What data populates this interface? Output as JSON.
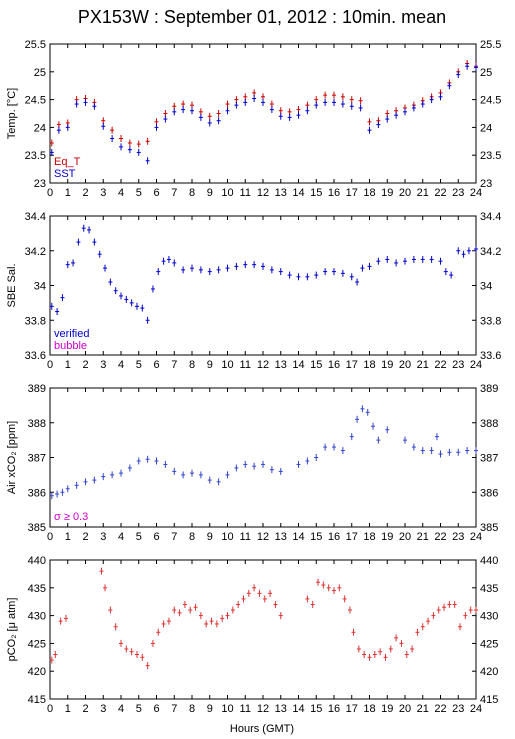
{
  "title": "PX153W : September 01, 2012 : 10min. mean",
  "xlabel": "Hours (GMT)",
  "colors": {
    "eq_t": "#cc0000",
    "sst": "#0000cc",
    "verified": "#0000cc",
    "bubble": "#cc00cc",
    "sigma": "#cc00cc",
    "air": "#3344cc",
    "pco2": "#dd3333"
  },
  "chart_data": [
    {
      "type": "scatter",
      "ylabel": "Temp. [°C]",
      "xlim": [
        0,
        24
      ],
      "ylim": [
        23,
        25.5
      ],
      "xticks": [
        0,
        1,
        2,
        3,
        4,
        5,
        6,
        7,
        8,
        9,
        10,
        11,
        12,
        13,
        14,
        15,
        16,
        17,
        18,
        19,
        20,
        21,
        22,
        23,
        24
      ],
      "yticks": [
        23,
        23.5,
        24,
        24.5,
        25,
        25.5
      ],
      "ytick_labels": [
        "23",
        "23.5",
        "24",
        "24.5",
        "25",
        "25.5"
      ],
      "legend": [
        "Eq_T",
        "SST"
      ],
      "series": [
        {
          "name": "Eq_T",
          "x": [
            0.1,
            0.5,
            1.0,
            1.5,
            2.0,
            2.5,
            3.0,
            3.5,
            4.0,
            4.5,
            5.0,
            5.5,
            6.0,
            6.5,
            7.0,
            7.5,
            8.0,
            8.5,
            9.0,
            9.5,
            10.0,
            10.5,
            11.0,
            11.5,
            12.0,
            12.5,
            13.0,
            13.5,
            14.0,
            14.5,
            15.0,
            15.5,
            16.0,
            16.5,
            17.0,
            17.5,
            18.0,
            18.5,
            19.0,
            19.5,
            20.0,
            20.5,
            21.0,
            21.5,
            22.0,
            22.5,
            23.0,
            23.5,
            24.0
          ],
          "y": [
            23.72,
            24.05,
            24.08,
            24.5,
            24.52,
            24.45,
            24.12,
            23.95,
            23.8,
            23.72,
            23.7,
            23.75,
            24.1,
            24.25,
            24.38,
            24.42,
            24.4,
            24.28,
            24.2,
            24.25,
            24.42,
            24.5,
            24.55,
            24.62,
            24.55,
            24.42,
            24.3,
            24.28,
            24.32,
            24.4,
            24.5,
            24.58,
            24.58,
            24.55,
            24.5,
            24.48,
            24.1,
            24.12,
            24.25,
            24.3,
            24.35,
            24.4,
            24.48,
            24.55,
            24.62,
            24.8,
            25.0,
            25.15,
            25.1
          ]
        },
        {
          "name": "SST",
          "x": [
            0.1,
            0.5,
            1.0,
            1.5,
            2.0,
            2.5,
            3.0,
            3.5,
            4.0,
            4.5,
            5.0,
            5.5,
            6.0,
            6.5,
            7.0,
            7.5,
            8.0,
            8.5,
            9.0,
            9.5,
            10.0,
            10.5,
            11.0,
            11.5,
            12.0,
            12.5,
            13.0,
            13.5,
            14.0,
            14.5,
            15.0,
            15.5,
            16.0,
            16.5,
            17.0,
            17.5,
            18.0,
            18.5,
            19.0,
            19.5,
            20.0,
            20.5,
            21.0,
            21.5,
            22.0,
            22.5,
            23.0,
            23.5,
            24.0
          ],
          "y": [
            23.55,
            23.95,
            24.0,
            24.42,
            24.45,
            24.38,
            24.02,
            23.8,
            23.65,
            23.6,
            23.55,
            23.4,
            24.0,
            24.15,
            24.28,
            24.32,
            24.3,
            24.18,
            24.08,
            24.12,
            24.3,
            24.4,
            24.45,
            24.52,
            24.45,
            24.32,
            24.2,
            24.18,
            24.22,
            24.3,
            24.4,
            24.45,
            24.45,
            24.42,
            24.38,
            24.35,
            23.95,
            24.05,
            24.15,
            24.22,
            24.28,
            24.35,
            24.42,
            24.5,
            24.55,
            24.75,
            24.95,
            25.1,
            25.08
          ]
        }
      ]
    },
    {
      "type": "scatter",
      "ylabel": "SBE Sal.",
      "xlim": [
        0,
        24
      ],
      "ylim": [
        33.6,
        34.4
      ],
      "xticks": [
        0,
        1,
        2,
        3,
        4,
        5,
        6,
        7,
        8,
        9,
        10,
        11,
        12,
        13,
        14,
        15,
        16,
        17,
        18,
        19,
        20,
        21,
        22,
        23,
        24
      ],
      "yticks": [
        33.6,
        33.8,
        34,
        34.2,
        34.4
      ],
      "ytick_labels": [
        "33.6",
        "33.8",
        "34",
        "34.2",
        "34.4"
      ],
      "legend": [
        "verified",
        "bubble"
      ],
      "series": [
        {
          "name": "verified",
          "x": [
            0.1,
            0.4,
            0.7,
            1.0,
            1.3,
            1.6,
            1.9,
            2.2,
            2.5,
            2.8,
            3.1,
            3.4,
            3.7,
            4.0,
            4.3,
            4.6,
            4.9,
            5.2,
            5.5,
            5.8,
            6.1,
            6.4,
            6.7,
            7.0,
            7.5,
            8.0,
            8.5,
            9.0,
            9.5,
            10.0,
            10.5,
            11.0,
            11.5,
            12.0,
            12.5,
            13.0,
            13.5,
            14.0,
            14.5,
            15.0,
            15.5,
            16.0,
            16.5,
            17.0,
            17.3,
            17.6,
            18.0,
            18.5,
            19.0,
            19.5,
            20.0,
            20.5,
            21.0,
            21.5,
            22.0,
            22.3,
            22.6,
            23.0,
            23.3,
            23.6,
            24.0
          ],
          "y": [
            33.88,
            33.85,
            33.93,
            34.12,
            34.13,
            34.25,
            34.33,
            34.32,
            34.25,
            34.18,
            34.1,
            34.02,
            33.97,
            33.94,
            33.92,
            33.9,
            33.88,
            33.87,
            33.8,
            33.98,
            34.08,
            34.14,
            34.15,
            34.13,
            34.09,
            34.1,
            34.09,
            34.08,
            34.09,
            34.1,
            34.11,
            34.12,
            34.12,
            34.11,
            34.09,
            34.08,
            34.06,
            34.05,
            34.05,
            34.06,
            34.08,
            34.08,
            34.07,
            34.05,
            34.02,
            34.1,
            34.11,
            34.14,
            34.15,
            34.13,
            34.14,
            34.15,
            34.15,
            34.15,
            34.14,
            34.08,
            34.06,
            34.2,
            34.18,
            34.2,
            34.21
          ]
        }
      ]
    },
    {
      "type": "scatter",
      "ylabel": "Air xCO₂ [ppm]",
      "xlim": [
        0,
        24
      ],
      "ylim": [
        385,
        389
      ],
      "xticks": [
        0,
        1,
        2,
        3,
        4,
        5,
        6,
        7,
        8,
        9,
        10,
        11,
        12,
        13,
        14,
        15,
        16,
        17,
        18,
        19,
        20,
        21,
        22,
        23,
        24
      ],
      "yticks": [
        385,
        386,
        387,
        388,
        389
      ],
      "ytick_labels": [
        "385",
        "386",
        "387",
        "388",
        "389"
      ],
      "annotation": "σ ≥ 0.3",
      "series": [
        {
          "name": "Air xCO2",
          "x": [
            0.1,
            0.4,
            0.7,
            1.0,
            1.5,
            2.0,
            2.5,
            3.0,
            3.5,
            4.0,
            4.5,
            5.0,
            5.5,
            6.0,
            6.5,
            7.0,
            7.5,
            8.0,
            8.5,
            9.0,
            9.5,
            10.0,
            10.5,
            11.0,
            11.5,
            12.0,
            12.5,
            13.0,
            14.0,
            14.5,
            15.0,
            15.5,
            16.0,
            16.5,
            17.0,
            17.3,
            17.6,
            17.9,
            18.2,
            18.5,
            19.0,
            20.0,
            20.5,
            21.0,
            21.5,
            21.8,
            22.0,
            22.5,
            23.0,
            23.5,
            24.0
          ],
          "y": [
            385.9,
            385.95,
            386.0,
            386.1,
            386.2,
            386.3,
            386.35,
            386.45,
            386.5,
            386.55,
            386.7,
            386.9,
            386.95,
            386.9,
            386.8,
            386.6,
            386.5,
            386.55,
            386.5,
            386.35,
            386.3,
            386.5,
            386.7,
            386.8,
            386.75,
            386.8,
            386.65,
            386.6,
            386.8,
            386.9,
            387.0,
            387.3,
            387.3,
            387.2,
            387.6,
            388.1,
            388.4,
            388.3,
            387.9,
            387.5,
            387.8,
            387.5,
            387.3,
            387.2,
            387.2,
            387.6,
            387.1,
            387.15,
            387.15,
            387.2,
            387.2
          ]
        }
      ]
    },
    {
      "type": "scatter",
      "ylabel": "pCO₂ [μ atm]",
      "xlim": [
        0,
        24
      ],
      "ylim": [
        415,
        440
      ],
      "xticks": [
        0,
        1,
        2,
        3,
        4,
        5,
        6,
        7,
        8,
        9,
        10,
        11,
        12,
        13,
        14,
        15,
        16,
        17,
        18,
        19,
        20,
        21,
        22,
        23,
        24
      ],
      "yticks": [
        415,
        420,
        425,
        430,
        435,
        440
      ],
      "ytick_labels": [
        "415",
        "420",
        "425",
        "430",
        "435",
        "440"
      ],
      "series": [
        {
          "name": "pCO2",
          "x": [
            0.1,
            0.3,
            0.6,
            0.9,
            2.9,
            3.1,
            3.4,
            3.7,
            4.0,
            4.3,
            4.6,
            4.9,
            5.2,
            5.5,
            5.8,
            6.1,
            6.4,
            6.7,
            7.0,
            7.3,
            7.6,
            7.9,
            8.2,
            8.5,
            8.8,
            9.1,
            9.4,
            9.7,
            10.0,
            10.3,
            10.6,
            10.9,
            11.2,
            11.5,
            11.8,
            12.1,
            12.4,
            12.7,
            13.0,
            14.5,
            14.8,
            15.1,
            15.4,
            15.7,
            16.0,
            16.3,
            16.6,
            16.9,
            17.1,
            17.4,
            17.7,
            18.0,
            18.3,
            18.6,
            18.9,
            19.2,
            19.5,
            19.8,
            20.1,
            20.4,
            20.7,
            21.0,
            21.3,
            21.6,
            21.9,
            22.2,
            22.5,
            22.8,
            23.1,
            23.4,
            23.7,
            24.0
          ],
          "y": [
            422,
            423,
            429,
            429.5,
            438,
            435,
            431,
            428,
            425,
            424,
            423.5,
            423,
            422.5,
            421,
            425,
            427,
            428.5,
            429,
            431,
            430.5,
            432,
            431,
            431.5,
            430,
            428.5,
            429,
            428.5,
            429.5,
            430,
            431,
            432,
            433,
            434,
            435,
            434,
            433,
            434,
            432,
            430,
            433,
            432,
            436,
            435.5,
            435,
            434.5,
            435,
            433,
            431,
            427,
            424,
            423,
            422.5,
            423,
            423.5,
            422.5,
            424,
            426,
            425,
            423,
            424,
            427,
            428,
            429,
            430,
            431,
            431.5,
            432,
            432,
            428,
            430,
            431,
            431
          ]
        }
      ]
    }
  ]
}
